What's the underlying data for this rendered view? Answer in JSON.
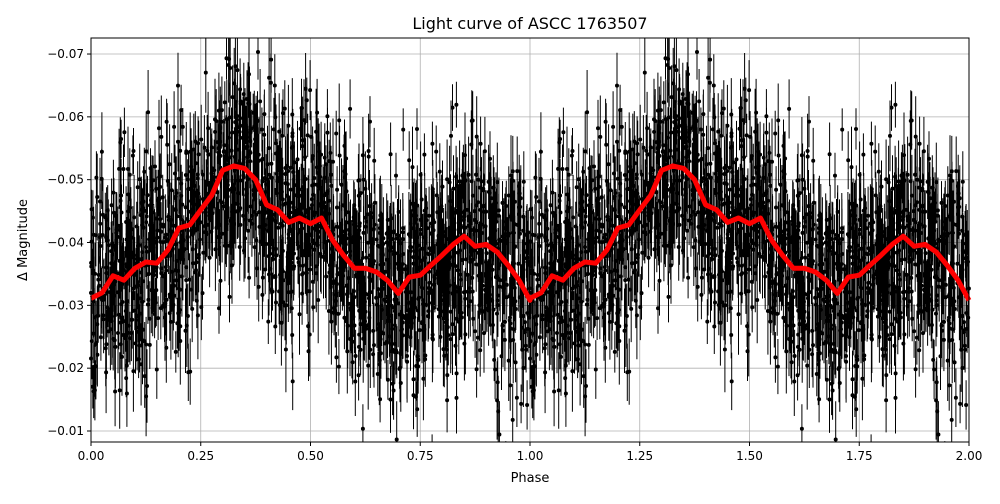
{
  "chart_data": {
    "type": "line",
    "title": "Light curve of ASCC 1763507",
    "xlabel": "Phase",
    "ylabel": "Δ Magnitude",
    "xlim": [
      0,
      2
    ],
    "ylim": [
      -0.00825,
      -0.07255
    ],
    "y_inverted": true,
    "grid": true,
    "x_ticks": [
      "0.00",
      "0.25",
      "0.50",
      "0.75",
      "1.00",
      "1.25",
      "1.50",
      "1.75",
      "2.00"
    ],
    "x_tick_values": [
      0,
      0.25,
      0.5,
      0.75,
      1,
      1.25,
      1.5,
      1.75,
      2
    ],
    "y_ticks": [
      "−0.07",
      "−0.06",
      "−0.05",
      "−0.04",
      "−0.03",
      "−0.02",
      "−0.01"
    ],
    "y_tick_values": [
      -0.07,
      -0.06,
      -0.05,
      -0.04,
      -0.03,
      -0.02,
      -0.01
    ],
    "series": [
      {
        "kind": "binned-mean",
        "color": "#ff0000",
        "x": [
          0,
          0.025,
          0.05,
          0.075,
          0.1,
          0.125,
          0.15,
          0.175,
          0.2,
          0.225,
          0.25,
          0.275,
          0.3,
          0.325,
          0.35,
          0.375,
          0.4,
          0.425,
          0.45,
          0.475,
          0.5,
          0.525,
          0.55,
          0.575,
          0.6,
          0.625,
          0.65,
          0.675,
          0.7,
          0.725,
          0.75,
          0.775,
          0.8,
          0.825,
          0.85,
          0.875,
          0.9,
          0.925,
          0.95,
          0.975,
          1.0
        ],
        "y": [
          -0.0311,
          -0.032,
          -0.0347,
          -0.034,
          -0.0359,
          -0.0369,
          -0.0367,
          -0.0388,
          -0.0423,
          -0.0428,
          -0.0452,
          -0.0475,
          -0.0515,
          -0.0522,
          -0.0518,
          -0.05,
          -0.046,
          -0.0452,
          -0.0432,
          -0.0439,
          -0.043,
          -0.0439,
          -0.0404,
          -0.038,
          -0.0359,
          -0.0359,
          -0.0353,
          -0.034,
          -0.0319,
          -0.0345,
          -0.0348,
          -0.0364,
          -0.038,
          -0.0397,
          -0.041,
          -0.0394,
          -0.0397,
          -0.0385,
          -0.0364,
          -0.034,
          -0.0308
        ],
        "repeats_each_phase": true
      },
      {
        "kind": "observations-with-errorbars",
        "color": "#000000",
        "scatter_sigma": 0.011,
        "errorbar_halfwidth": 0.005
      }
    ]
  }
}
